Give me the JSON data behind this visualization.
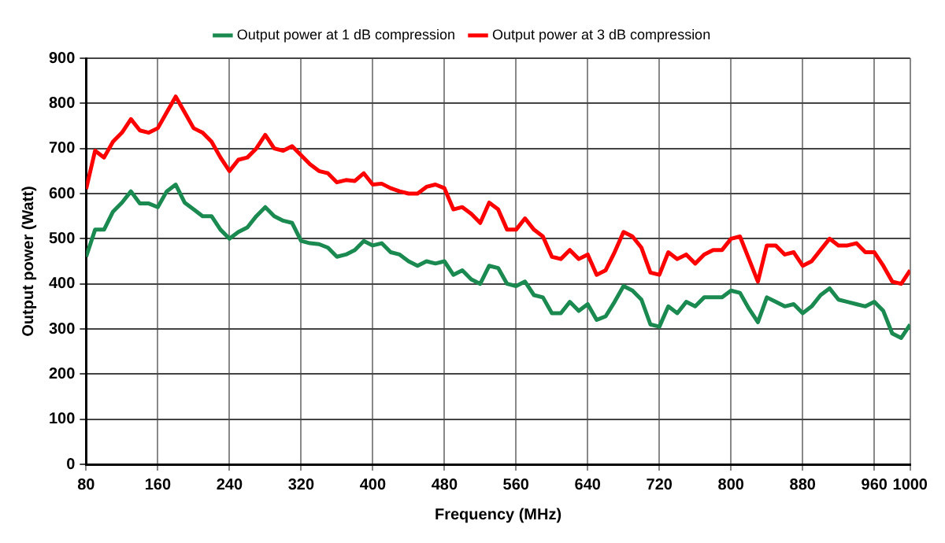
{
  "chart_data": {
    "type": "line",
    "xlabel": "Frequency (MHz)",
    "ylabel": "Output power (Watt)",
    "x": [
      80,
      90,
      100,
      110,
      120,
      130,
      140,
      150,
      160,
      170,
      180,
      190,
      200,
      210,
      220,
      230,
      240,
      250,
      260,
      270,
      280,
      290,
      300,
      310,
      320,
      330,
      340,
      350,
      360,
      370,
      380,
      390,
      400,
      410,
      420,
      430,
      440,
      450,
      460,
      470,
      480,
      490,
      500,
      510,
      520,
      530,
      540,
      550,
      560,
      570,
      580,
      590,
      600,
      610,
      620,
      630,
      640,
      650,
      660,
      670,
      680,
      690,
      700,
      710,
      720,
      730,
      740,
      750,
      760,
      770,
      780,
      790,
      800,
      810,
      820,
      830,
      840,
      850,
      860,
      870,
      880,
      890,
      900,
      910,
      920,
      930,
      940,
      950,
      960,
      970,
      980,
      990,
      1000
    ],
    "series": [
      {
        "name": "Output power at 1 dB compression",
        "color": "#1a8a50",
        "values": [
          460,
          520,
          520,
          560,
          580,
          605,
          578,
          578,
          570,
          605,
          620,
          580,
          565,
          550,
          550,
          520,
          500,
          515,
          525,
          550,
          570,
          550,
          540,
          535,
          495,
          490,
          488,
          480,
          460,
          465,
          475,
          495,
          485,
          490,
          470,
          465,
          450,
          440,
          450,
          445,
          450,
          420,
          430,
          410,
          400,
          440,
          435,
          400,
          395,
          405,
          375,
          370,
          335,
          335,
          360,
          340,
          355,
          320,
          328,
          360,
          395,
          385,
          365,
          310,
          305,
          350,
          335,
          360,
          350,
          370,
          370,
          370,
          385,
          380,
          345,
          315,
          370,
          360,
          350,
          355,
          335,
          350,
          375,
          390,
          365,
          360,
          355,
          350,
          360,
          340,
          290,
          280,
          310
        ]
      },
      {
        "name": "Output power at 3 dB compression",
        "color": "#ff0000",
        "values": [
          610,
          695,
          680,
          715,
          735,
          765,
          740,
          735,
          745,
          780,
          815,
          780,
          745,
          735,
          715,
          680,
          650,
          675,
          680,
          700,
          730,
          700,
          695,
          705,
          685,
          665,
          650,
          645,
          625,
          630,
          628,
          645,
          620,
          622,
          612,
          605,
          600,
          600,
          615,
          620,
          612,
          565,
          570,
          555,
          535,
          580,
          565,
          520,
          520,
          545,
          520,
          505,
          460,
          455,
          475,
          455,
          465,
          420,
          430,
          470,
          515,
          505,
          480,
          425,
          420,
          470,
          455,
          465,
          445,
          465,
          475,
          475,
          500,
          505,
          455,
          405,
          485,
          485,
          465,
          470,
          440,
          450,
          475,
          500,
          485,
          485,
          490,
          470,
          470,
          440,
          405,
          400,
          430
        ]
      }
    ],
    "xlim": [
      80,
      1000
    ],
    "xticks": [
      80,
      160,
      240,
      320,
      400,
      480,
      560,
      640,
      720,
      800,
      880,
      960,
      1000
    ],
    "ylim": [
      0,
      900
    ],
    "yticks": [
      0,
      100,
      200,
      300,
      400,
      500,
      600,
      700,
      800,
      900
    ],
    "grid": true,
    "legend": "top",
    "marker": "none",
    "line_style": "solid"
  }
}
